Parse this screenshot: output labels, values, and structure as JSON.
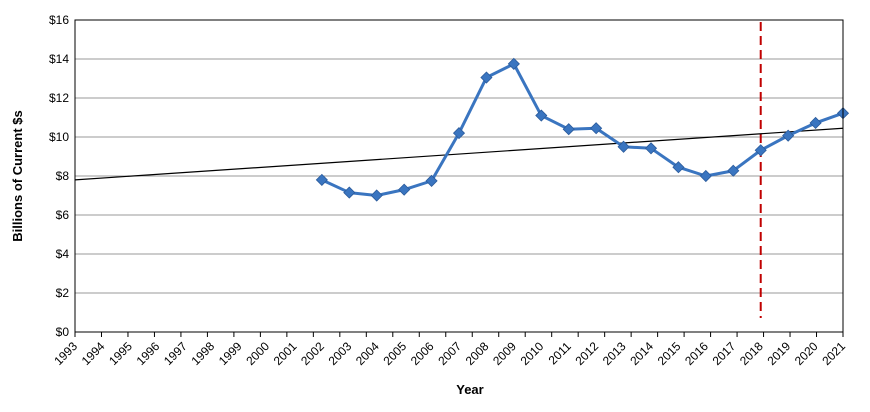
{
  "chart_data": {
    "type": "line",
    "title": "",
    "xlabel": "Year",
    "ylabel": "Billions of Current $s",
    "ylim": [
      0,
      16
    ],
    "yticks": [
      0,
      2,
      4,
      6,
      8,
      10,
      12,
      14,
      16
    ],
    "ytick_prefix": "$",
    "categories": [
      "1993",
      "1994",
      "1995",
      "1996",
      "1997",
      "1998",
      "1999",
      "2000",
      "2001",
      "2002",
      "2003",
      "2004",
      "2005",
      "2006",
      "2007",
      "2008",
      "2009",
      "2010",
      "2011",
      "2012",
      "2013",
      "2014",
      "2015",
      "2016",
      "2017",
      "2018",
      "2019",
      "2020",
      "2021"
    ],
    "series": [
      {
        "x": [
          "2002",
          "2003",
          "2004",
          "2005",
          "2006",
          "2007",
          "2008",
          "2009",
          "2010",
          "2011",
          "2012",
          "2013",
          "2014",
          "2015",
          "2016",
          "2017",
          "2018",
          "2019",
          "2020",
          "2021"
        ],
        "values": [
          7.8,
          7.15,
          7.0,
          7.3,
          7.75,
          10.2,
          13.05,
          13.75,
          11.1,
          10.4,
          10.45,
          9.5,
          9.42,
          8.45,
          8.0,
          8.27,
          9.32,
          10.07,
          10.72,
          11.22
        ],
        "color": "#3a75c0",
        "marker": "diamond"
      }
    ],
    "trendline": {
      "start": [
        "1993",
        7.8
      ],
      "end": [
        "2021",
        10.45
      ],
      "color": "#000000"
    },
    "reference_line": {
      "x": "2018",
      "color": "#c00000",
      "style": "dashed"
    },
    "grid": "horizontal",
    "legend": "none"
  }
}
